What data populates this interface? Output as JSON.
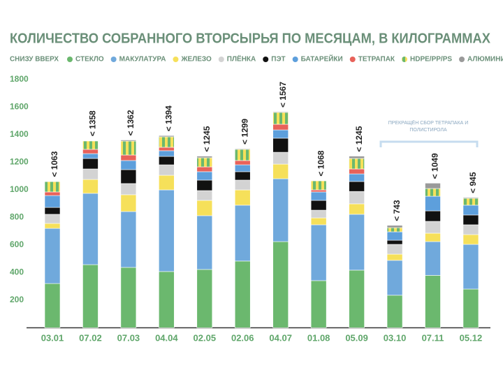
{
  "chart_data": {
    "type": "stacked_bar",
    "title": "КОЛИЧЕСТВО СОБРАННОГО ВТОРСЫРЬЯ ПО МЕСЯЦАМ, В КИЛОГРАММАХ",
    "legend_title": "СНИЗУ ВВЕРХ",
    "categories": [
      "03.01",
      "07.02",
      "07.03",
      "04.04",
      "02.05",
      "02.06",
      "04.07",
      "01.08",
      "05.09",
      "03.10",
      "07.11",
      "05.12"
    ],
    "series": [
      {
        "name": "СТЕКЛО",
        "color": "#6bb86e",
        "values": [
          321,
          458,
          438,
          408,
          423,
          484,
          625,
          342,
          418,
          236,
          380,
          281
        ]
      },
      {
        "name": "МАКУЛАТУРА",
        "color": "#70a9dc",
        "values": [
          400,
          517,
          405,
          592,
          390,
          405,
          456,
          405,
          405,
          253,
          245,
          324
        ]
      },
      {
        "name": "ЖЕЛЕЗО",
        "color": "#f6e05a",
        "values": [
          36,
          101,
          122,
          106,
          111,
          111,
          106,
          50,
          76,
          45,
          61,
          71
        ]
      },
      {
        "name": "ПЛЁНКА",
        "color": "#d3d3d3",
        "values": [
          66,
          76,
          81,
          76,
          71,
          71,
          86,
          56,
          90,
          71,
          86,
          71
        ]
      },
      {
        "name": "ПЭТ",
        "color": "#111111",
        "values": [
          50,
          76,
          101,
          61,
          76,
          61,
          102,
          71,
          72,
          30,
          76,
          71
        ]
      },
      {
        "name": "БАТАРЕЙКИ",
        "color": "#5d9fdc",
        "values": [
          86,
          35,
          66,
          41,
          61,
          50,
          60,
          61,
          55,
          61,
          106,
          71
        ]
      },
      {
        "name": "ТЕТРАПАК",
        "color": "#e8625a",
        "values": [
          26,
          31,
          40,
          25,
          35,
          31,
          41,
          15,
          36,
          0,
          0,
          0
        ]
      },
      {
        "name": "HDPE/PP/PS",
        "colors": [
          "#6bb86e",
          "#f6e05a"
        ],
        "values": [
          75,
          61,
          101,
          76,
          66,
          81,
          86,
          66,
          76,
          30,
          56,
          50
        ]
      },
      {
        "name": "АЛЮМИНИЙ",
        "color": "#9a9a9a",
        "values": [
          3,
          3,
          8,
          9,
          12,
          5,
          5,
          2,
          17,
          17,
          39,
          6
        ]
      }
    ],
    "totals": [
      1063,
      1358,
      1362,
      1394,
      1245,
      1299,
      1567,
      1068,
      1245,
      743,
      1049,
      945
    ],
    "total_labels": [
      "< 1063",
      "< 1358",
      "< 1362",
      "< 1394",
      "< 1245",
      "< 1299",
      "< 1567",
      "< 1068",
      "< 1245",
      "< 743",
      "< 1049",
      "< 945"
    ],
    "annotation": [
      "ПРЕКРАЩЁН СБОР ТЕТРАПАКА И",
      "ПОЛИСТИРОЛА"
    ],
    "ylim": [
      0,
      1800
    ],
    "yticks": [
      200,
      400,
      600,
      800,
      1000,
      1200,
      1400,
      1600,
      1800
    ],
    "grid": false
  }
}
